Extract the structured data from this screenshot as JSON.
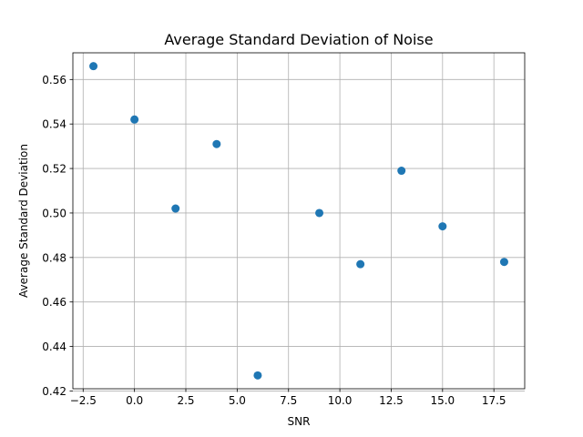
{
  "chart_data": {
    "type": "scatter",
    "title": "Average Standard Deviation of Noise",
    "xlabel": "SNR",
    "ylabel": "Average Standard Deviation",
    "xlim": [
      -3.0,
      19.0
    ],
    "ylim": [
      0.421,
      0.572
    ],
    "xticks": [
      -2.5,
      0.0,
      2.5,
      5.0,
      7.5,
      10.0,
      12.5,
      15.0,
      17.5
    ],
    "xtick_labels": [
      "−2.5",
      "0.0",
      "2.5",
      "5.0",
      "7.5",
      "10.0",
      "12.5",
      "15.0",
      "17.5"
    ],
    "yticks": [
      0.42,
      0.44,
      0.46,
      0.48,
      0.5,
      0.52,
      0.54,
      0.56
    ],
    "ytick_labels": [
      "0.42",
      "0.44",
      "0.46",
      "0.48",
      "0.50",
      "0.52",
      "0.54",
      "0.56"
    ],
    "grid": true,
    "marker_color": "#1f77b4",
    "points": [
      {
        "x": -2,
        "y": 0.566
      },
      {
        "x": 0,
        "y": 0.542
      },
      {
        "x": 2,
        "y": 0.502
      },
      {
        "x": 4,
        "y": 0.531
      },
      {
        "x": 6,
        "y": 0.427
      },
      {
        "x": 9,
        "y": 0.5
      },
      {
        "x": 11,
        "y": 0.477
      },
      {
        "x": 13,
        "y": 0.519
      },
      {
        "x": 15,
        "y": 0.494
      },
      {
        "x": 18,
        "y": 0.478
      }
    ]
  }
}
